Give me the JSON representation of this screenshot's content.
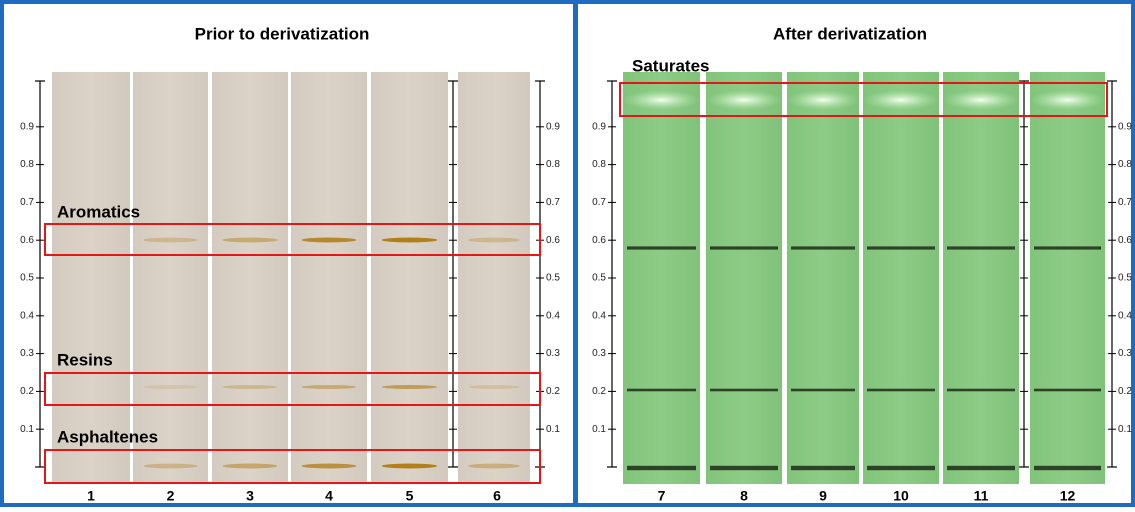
{
  "left_panel": {
    "title": "Prior to derivatization",
    "band_labels": [
      "Aromatics",
      "Resins",
      "Asphaltenes"
    ],
    "lanes": [
      "1",
      "2",
      "3",
      "4",
      "5",
      "6"
    ],
    "axis_ticks": [
      "0.9",
      "0.8",
      "0.7",
      "0.6",
      "0.5",
      "0.4",
      "0.3",
      "0.2",
      "0.1"
    ]
  },
  "right_panel": {
    "title": "After derivatization",
    "band_labels": [
      "Saturates"
    ],
    "lanes": [
      "7",
      "8",
      "9",
      "10",
      "11",
      "12"
    ],
    "axis_ticks": [
      "0.9",
      "0.8",
      "0.7",
      "0.6",
      "0.5",
      "0.4",
      "0.3",
      "0.2",
      "0.1"
    ]
  }
}
